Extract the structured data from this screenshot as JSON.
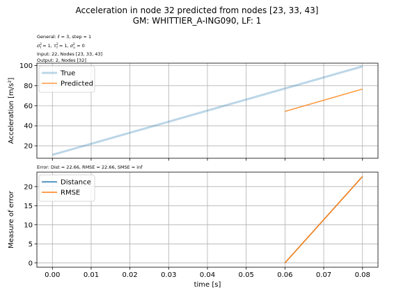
{
  "figure": {
    "title_line1": "Acceleration in node 32 predicted from nodes [23, 33, 43]",
    "title_line2": "GM: WHITTIER_A-ING090, LF: 1",
    "info_line1": "General: ℓ = 3, step = 1",
    "info_line2": "σ²ᵦ = 1, τ²ᵦ = 1, σ²ᵧ = 0",
    "info_line3": "Input: 22, Nodes [23, 33, 43]",
    "info_line4": "Output: 2, Nodes [32]",
    "error_text": "Error: Dist = 22.66, RMSE = 22.66, SMSE = inf"
  },
  "chart_data": [
    {
      "type": "line",
      "ylabel": "Acceleration [m/s²]",
      "xlabel": "",
      "xlim": [
        -0.004,
        0.084
      ],
      "ylim": [
        7.6,
        102.4
      ],
      "xticks": [
        0.0,
        0.01,
        0.02,
        0.03,
        0.04,
        0.05,
        0.06,
        0.07,
        0.08
      ],
      "xtick_labels": [],
      "yticks": [
        20,
        40,
        60,
        80,
        100
      ],
      "ytick_labels": [
        "20",
        "40",
        "60",
        "80",
        "100"
      ],
      "grid": true,
      "legend_position": "top-left",
      "series": [
        {
          "name": "True",
          "color": "#1f77b4",
          "opacity": 0.3,
          "x": [
            0.0,
            0.08
          ],
          "y": [
            11.0,
            99.2
          ]
        },
        {
          "name": "Predicted",
          "color": "#ff7f0e",
          "opacity": 0.8,
          "x": [
            0.06,
            0.08
          ],
          "y": [
            54.3,
            76.6
          ]
        }
      ]
    },
    {
      "type": "line",
      "ylabel": "Measure of error",
      "xlabel": "time [s]",
      "xlim": [
        -0.004,
        0.084
      ],
      "ylim": [
        -1.13,
        23.79
      ],
      "xticks": [
        0.0,
        0.01,
        0.02,
        0.03,
        0.04,
        0.05,
        0.06,
        0.07,
        0.08
      ],
      "xtick_labels": [
        "0.00",
        "0.01",
        "0.02",
        "0.03",
        "0.04",
        "0.05",
        "0.06",
        "0.07",
        "0.08"
      ],
      "yticks": [
        0,
        5,
        10,
        15,
        20
      ],
      "ytick_labels": [
        "0",
        "5",
        "10",
        "15",
        "20"
      ],
      "grid": true,
      "legend_position": "top-left",
      "series": [
        {
          "name": "Distance",
          "color": "#1f77b4",
          "opacity": 1,
          "x": [
            0.06,
            0.08
          ],
          "y": [
            0.0,
            22.66
          ]
        },
        {
          "name": "RMSE",
          "color": "#ff7f0e",
          "opacity": 1,
          "x": [
            0.06,
            0.08
          ],
          "y": [
            0.0,
            22.66
          ]
        }
      ]
    }
  ]
}
